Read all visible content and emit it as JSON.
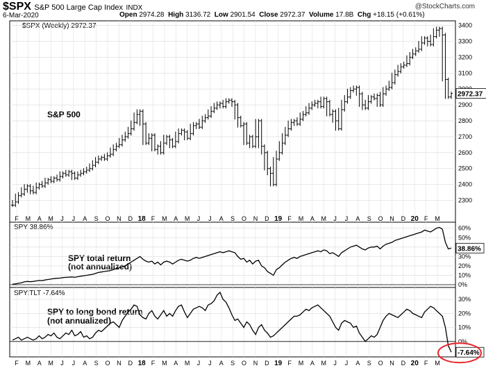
{
  "header": {
    "symbol": "$SPX",
    "name": "S&P 500 Large Cap Index",
    "exchange": "INDX",
    "date": "6-Mar-2020",
    "open_label": "Open",
    "open": "2974.28",
    "high_label": "High",
    "high": "3136.72",
    "low_label": "Low",
    "low": "2901.54",
    "close_label": "Close",
    "close": "2972.37",
    "volume_label": "Volume",
    "volume": "17.8B",
    "chg_label": "Chg",
    "chg": "+18.15 (+0.61%)",
    "credit": "@StockCharts.com"
  },
  "panels": {
    "main_legend": "$SPX (Weekly) 2972.37",
    "main_annotation": "S&P 500",
    "main_last_value": "2972.37",
    "mid_legend": "SPY 38.86%",
    "mid_annotation_1": "SPY total return",
    "mid_annotation_2": "(not annualized)",
    "mid_last_value": "38.86%",
    "bot_legend": "SPY:TLT -7.64%",
    "bot_annotation_1": "SPY to long bond return",
    "bot_annotation_2": "(not annualized)",
    "bot_last_value": "-7.64%"
  },
  "colors": {
    "highlight_circle": "#e8232a",
    "grid": "#d9d9d9",
    "line": "#000000"
  },
  "chart_data": [
    {
      "type": "line",
      "variant": "ohlc-weekly",
      "series": [
        {
          "name": "$SPX (Weekly)",
          "values": [
            2270,
            2290,
            2330,
            2340,
            2370,
            2390,
            2360,
            2350,
            2380,
            2400,
            2390,
            2410,
            2430,
            2420,
            2440,
            2430,
            2450,
            2470,
            2460,
            2480,
            2470,
            2440,
            2460,
            2470,
            2480,
            2490,
            2500,
            2520,
            2540,
            2560,
            2570,
            2560,
            2580,
            2590,
            2620,
            2640,
            2650,
            2680,
            2700,
            2720,
            2750,
            2790,
            2840,
            2860,
            2780,
            2660,
            2690,
            2710,
            2620,
            2640,
            2600,
            2660,
            2700,
            2680,
            2640,
            2670,
            2720,
            2740,
            2730,
            2690,
            2720,
            2770,
            2780,
            2760,
            2800,
            2820,
            2830,
            2860,
            2880,
            2900,
            2910,
            2890,
            2920,
            2930,
            2920,
            2900,
            2820,
            2770,
            2780,
            2660,
            2700,
            2640,
            2700,
            2800,
            2640,
            2600,
            2500,
            2470,
            2400,
            2560,
            2600,
            2660,
            2710,
            2750,
            2790,
            2800,
            2780,
            2810,
            2840,
            2850,
            2880,
            2900,
            2910,
            2920,
            2890,
            2940,
            2920,
            2840,
            2860,
            2800,
            2750,
            2870,
            2920,
            2950,
            2990,
            3000,
            3010,
            2970,
            2900,
            2880,
            2920,
            2950,
            2940,
            2960,
            2900,
            2970,
            3000,
            3010,
            3040,
            3090,
            3110,
            3140,
            3150,
            3160,
            3200,
            3220,
            3240,
            3250,
            3290,
            3320,
            3300,
            3280,
            3330,
            3370,
            3380,
            3340,
            3060,
            2950,
            2972
          ]
        }
      ],
      "x_tick_labels": [
        "F",
        "M",
        "A",
        "M",
        "J",
        "J",
        "A",
        "S",
        "O",
        "N",
        "D",
        "18",
        "F",
        "M",
        "A",
        "M",
        "J",
        "J",
        "A",
        "S",
        "O",
        "N",
        "D",
        "19",
        "F",
        "M",
        "A",
        "M",
        "J",
        "J",
        "A",
        "S",
        "O",
        "N",
        "D",
        "20",
        "F",
        "M"
      ],
      "y_tick_labels": [
        "2300",
        "2400",
        "2500",
        "2600",
        "2700",
        "2800",
        "2900",
        "3000",
        "3100",
        "3200",
        "3300",
        "3400"
      ],
      "ylim": [
        2250,
        3420
      ],
      "last_value": 2972.37
    },
    {
      "type": "line",
      "series": [
        {
          "name": "SPY",
          "values": [
            0.5,
            0.8,
            1.5,
            2,
            3,
            3.5,
            3.2,
            3.5,
            4,
            4.5,
            4.3,
            5,
            5.5,
            6,
            6.5,
            6.8,
            7,
            7.5,
            7.8,
            8,
            8.3,
            7.8,
            8.5,
            9,
            9.5,
            10,
            10.5,
            11,
            12,
            13,
            13.5,
            14,
            14.5,
            15,
            16,
            17,
            18,
            19,
            20,
            22,
            24,
            26,
            28,
            30,
            27,
            25,
            24,
            25,
            22,
            24,
            21,
            24,
            25,
            24,
            22,
            24,
            26,
            27,
            26,
            25,
            26,
            28,
            29,
            28,
            29,
            30,
            31,
            32,
            33,
            34,
            35,
            34,
            35,
            36,
            35,
            34,
            30,
            27,
            28,
            24,
            26,
            22,
            25,
            26,
            20,
            18,
            14,
            12,
            10,
            16,
            18,
            21,
            24,
            26,
            28,
            29,
            28,
            30,
            31,
            32,
            33,
            34,
            35,
            36,
            35,
            37,
            36,
            33,
            34,
            32,
            30,
            34,
            36,
            38,
            40,
            41,
            42,
            40,
            38,
            37,
            39,
            40,
            40,
            41,
            38,
            41,
            43,
            44,
            45,
            47,
            48,
            49,
            50,
            51,
            52,
            53,
            54,
            55,
            56,
            58,
            57,
            56,
            58,
            60,
            61,
            59,
            45,
            38,
            38.86
          ]
        }
      ],
      "y_tick_labels": [
        "0%",
        "10%",
        "20%",
        "30%",
        "40%",
        "50%",
        "60%"
      ],
      "ylim": [
        0,
        62
      ],
      "last_value": 38.86
    },
    {
      "type": "line",
      "series": [
        {
          "name": "SPY:TLT",
          "values": [
            1,
            2,
            3,
            1,
            2,
            3,
            2,
            1,
            2,
            4,
            2,
            3,
            5,
            4,
            6,
            3,
            2,
            4,
            6,
            5,
            8,
            4,
            5,
            7,
            3,
            4,
            2,
            3,
            6,
            8,
            7,
            9,
            11,
            13,
            14,
            12,
            10,
            15,
            18,
            21,
            23,
            26,
            25,
            19,
            17,
            16,
            20,
            22,
            18,
            16,
            19,
            22,
            18,
            20,
            18,
            22,
            25,
            26,
            21,
            17,
            20,
            23,
            24,
            25,
            24,
            22,
            26,
            27,
            29,
            33,
            35,
            30,
            28,
            24,
            19,
            15,
            16,
            13,
            10,
            14,
            12,
            8,
            5,
            10,
            12,
            8,
            6,
            3,
            4,
            6,
            8,
            10,
            12,
            14,
            16,
            18,
            18,
            19,
            21,
            23,
            22,
            24,
            25,
            26,
            24,
            22,
            20,
            18,
            14,
            10,
            8,
            13,
            15,
            14,
            13,
            10,
            11,
            6,
            3,
            0,
            2,
            4,
            3,
            5,
            10,
            15,
            18,
            20,
            19,
            18,
            17,
            19,
            21,
            23,
            22,
            20,
            19,
            18,
            17,
            21,
            23,
            25,
            24,
            22,
            20,
            18,
            10,
            -3,
            -7.64
          ]
        }
      ],
      "y_tick_labels": [
        "0%",
        "10%",
        "20%",
        "30%"
      ],
      "ylim": [
        -9,
        36
      ],
      "last_value": -7.64
    }
  ]
}
